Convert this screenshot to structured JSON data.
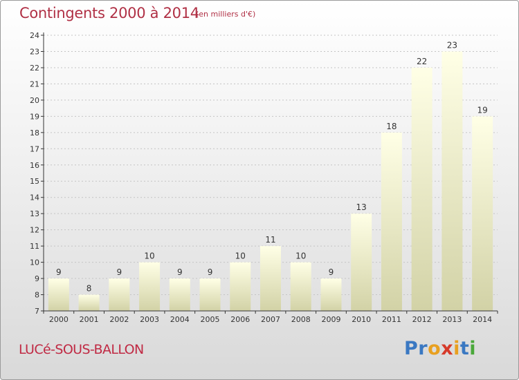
{
  "header": {
    "title": "Contingents 2000 à 2014",
    "unit": "(en milliers d'€)"
  },
  "footer": {
    "commune": "LUCé-SOUS-BALLON",
    "logo_text": "Proxiti",
    "logo_colors": [
      "#3a78c2",
      "#3a78c2",
      "#e8a020",
      "#d63a2a",
      "#e8a020",
      "#3a78c2",
      "#4aa83a"
    ]
  },
  "colors": {
    "title": "#b03045",
    "bar_light": "#ffffe4",
    "bar_dark": "#d4d4aa",
    "axis": "#333333",
    "grid": "#bbbbbb"
  },
  "chart_data": {
    "type": "bar",
    "title": "Contingents 2000 à 2014",
    "subtitle": "(en milliers d'€)",
    "xlabel": "",
    "ylabel": "",
    "categories": [
      "2000",
      "2001",
      "2002",
      "2003",
      "2004",
      "2005",
      "2006",
      "2007",
      "2008",
      "2009",
      "2010",
      "2011",
      "2012",
      "2013",
      "2014"
    ],
    "values": [
      9,
      8,
      9,
      10,
      9,
      9,
      10,
      11,
      10,
      9,
      13,
      18,
      22,
      23,
      19
    ],
    "ylim": [
      7,
      24
    ],
    "yticks": [
      7,
      8,
      9,
      10,
      11,
      12,
      13,
      14,
      15,
      16,
      17,
      18,
      19,
      20,
      21,
      22,
      23,
      24
    ],
    "grid": true,
    "data_labels": true
  }
}
